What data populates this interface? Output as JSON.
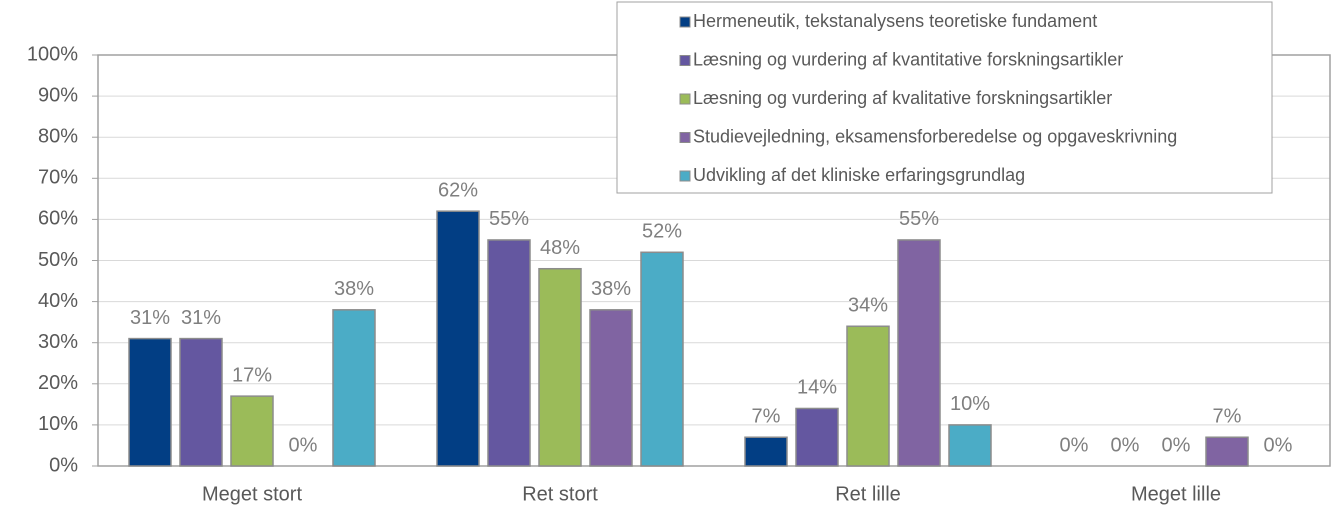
{
  "chart_data": {
    "type": "bar",
    "categories": [
      "Meget stort",
      "Ret stort",
      "Ret lille",
      "Meget lille"
    ],
    "series": [
      {
        "name": "Hermeneutik, tekstanalysens teoretiske fundament",
        "color": "#023e84",
        "values": [
          31,
          62,
          7,
          0
        ],
        "value_labels": [
          "31%",
          "62%",
          "7%",
          "0%"
        ]
      },
      {
        "name": "Læsning og vurdering af kvantitative forskningsartikler",
        "color": "#6457a0",
        "values": [
          31,
          55,
          14,
          0
        ],
        "value_labels": [
          "31%",
          "55%",
          "14%",
          "0%"
        ]
      },
      {
        "name": "Læsning og vurdering af kvalitative forskningsartikler",
        "color": "#9bbb59",
        "values": [
          17,
          48,
          34,
          0
        ],
        "value_labels": [
          "17%",
          "48%",
          "34%",
          "0%"
        ]
      },
      {
        "name": "Studievejledning, eksamensforberedelse og opgaveskrivning",
        "color": "#8064a2",
        "values": [
          0,
          38,
          55,
          7
        ],
        "value_labels": [
          "0%",
          "38%",
          "55%",
          "7%"
        ]
      },
      {
        "name": "Udvikling af det kliniske erfaringsgrundlag",
        "color": "#4bacc6",
        "values": [
          38,
          52,
          10,
          0
        ],
        "value_labels": [
          "38%",
          "52%",
          "10%",
          "0%"
        ]
      }
    ],
    "ylim": [
      0,
      100
    ],
    "yticks": [
      {
        "value": 0,
        "label": "0%"
      },
      {
        "value": 10,
        "label": "10%"
      },
      {
        "value": 20,
        "label": "20%"
      },
      {
        "value": 30,
        "label": "30%"
      },
      {
        "value": 40,
        "label": "40%"
      },
      {
        "value": 50,
        "label": "50%"
      },
      {
        "value": 60,
        "label": "60%"
      },
      {
        "value": 70,
        "label": "70%"
      },
      {
        "value": 80,
        "label": "80%"
      },
      {
        "value": 90,
        "label": "90%"
      },
      {
        "value": 100,
        "label": "100%"
      }
    ],
    "grid": true,
    "legend": "top-right"
  }
}
